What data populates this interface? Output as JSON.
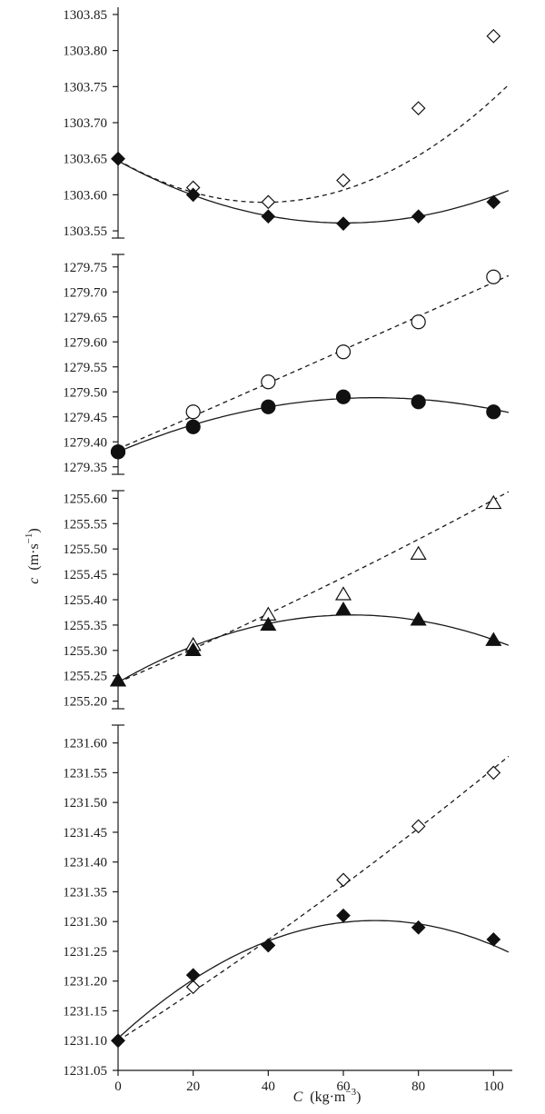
{
  "chart_data": {
    "type": "scatter",
    "xlabel_var": "C",
    "xlabel_unit": "(kg·m",
    "xlabel_exp": "−3",
    "xlabel_close": ")",
    "ylabel_var": "c",
    "ylabel_unit": "(m·s",
    "ylabel_exp": "−1",
    "ylabel_close": ")",
    "x_ticks": [
      "0",
      "20",
      "40",
      "60",
      "80",
      "100"
    ],
    "xlim": [
      0,
      105
    ],
    "grid": false,
    "panels": [
      {
        "ylim": [
          1303.54,
          1303.86
        ],
        "y_ticks": [
          "1303.55",
          "1303.60",
          "1303.65",
          "1303.70",
          "1303.75",
          "1303.80",
          "1303.85"
        ],
        "series": [
          {
            "marker": "diamond",
            "fill": "open",
            "line": "dashed",
            "x": [
              0,
              20,
              40,
              60,
              80,
              100
            ],
            "y": [
              1303.65,
              1303.61,
              1303.59,
              1303.62,
              1303.72,
              1303.82
            ],
            "fit": [
              1303.648,
              -0.003,
              3.85e-05
            ]
          },
          {
            "marker": "diamond",
            "fill": "filled",
            "line": "solid",
            "x": [
              0,
              20,
              40,
              60,
              80,
              100
            ],
            "y": [
              1303.65,
              1303.6,
              1303.57,
              1303.56,
              1303.57,
              1303.59
            ],
            "fit": [
              1303.647,
              -0.00285,
              2.36e-05
            ]
          }
        ]
      },
      {
        "ylim": [
          1279.335,
          1279.775
        ],
        "y_ticks": [
          "1279.35",
          "1279.40",
          "1279.45",
          "1279.50",
          "1279.55",
          "1279.60",
          "1279.65",
          "1279.70",
          "1279.75"
        ],
        "series": [
          {
            "marker": "circle",
            "fill": "open",
            "line": "dashed",
            "x": [
              0,
              20,
              40,
              60,
              80,
              100
            ],
            "y": [
              1279.38,
              1279.46,
              1279.52,
              1279.58,
              1279.64,
              1279.73
            ],
            "fit": [
              1279.386,
              0.00326,
              7e-07
            ]
          },
          {
            "marker": "circle",
            "fill": "filled",
            "line": "solid",
            "x": [
              0,
              20,
              40,
              60,
              80,
              100
            ],
            "y": [
              1279.38,
              1279.43,
              1279.47,
              1279.49,
              1279.48,
              1279.46
            ],
            "fit": [
              1279.38,
              0.00317,
              -2.32e-05
            ]
          }
        ]
      },
      {
        "ylim": [
          1255.185,
          1255.615
        ],
        "y_ticks": [
          "1255.20",
          "1255.25",
          "1255.30",
          "1255.35",
          "1255.40",
          "1255.45",
          "1255.50",
          "1255.55",
          "1255.60"
        ],
        "series": [
          {
            "marker": "triangle",
            "fill": "open",
            "line": "dashed",
            "x": [
              0,
              20,
              40,
              60,
              80,
              100
            ],
            "y": [
              1255.24,
              1255.31,
              1255.37,
              1255.41,
              1255.49,
              1255.59
            ],
            "fit": [
              1255.237,
              0.00323,
              3.7e-06
            ]
          },
          {
            "marker": "triangle",
            "fill": "filled",
            "line": "solid",
            "x": [
              0,
              20,
              40,
              60,
              80,
              100
            ],
            "y": [
              1255.24,
              1255.3,
              1255.35,
              1255.38,
              1255.36,
              1255.32
            ],
            "fit": [
              1255.237,
              0.00427,
              -3.43e-05
            ]
          }
        ]
      },
      {
        "ylim": [
          1231.05,
          1231.63
        ],
        "y_ticks": [
          "1231.05",
          "1231.10",
          "1231.15",
          "1231.20",
          "1231.25",
          "1231.30",
          "1231.35",
          "1231.40",
          "1231.45",
          "1231.50",
          "1231.55",
          "1231.60"
        ],
        "series": [
          {
            "marker": "diamond",
            "fill": "open",
            "line": "dashed",
            "x": [
              0,
              20,
              40,
              60,
              80,
              100
            ],
            "y": [
              1231.1,
              1231.19,
              1231.26,
              1231.37,
              1231.46,
              1231.55
            ],
            "fit": [
              1231.1,
              0.00402,
              5.5e-06
            ]
          },
          {
            "marker": "diamond",
            "fill": "filled",
            "line": "solid",
            "x": [
              0,
              20,
              40,
              60,
              80,
              100
            ],
            "y": [
              1231.1,
              1231.21,
              1231.26,
              1231.31,
              1231.29,
              1231.27
            ],
            "fit": [
              1231.104,
              0.00577,
              -4.21e-05
            ]
          }
        ]
      }
    ]
  }
}
